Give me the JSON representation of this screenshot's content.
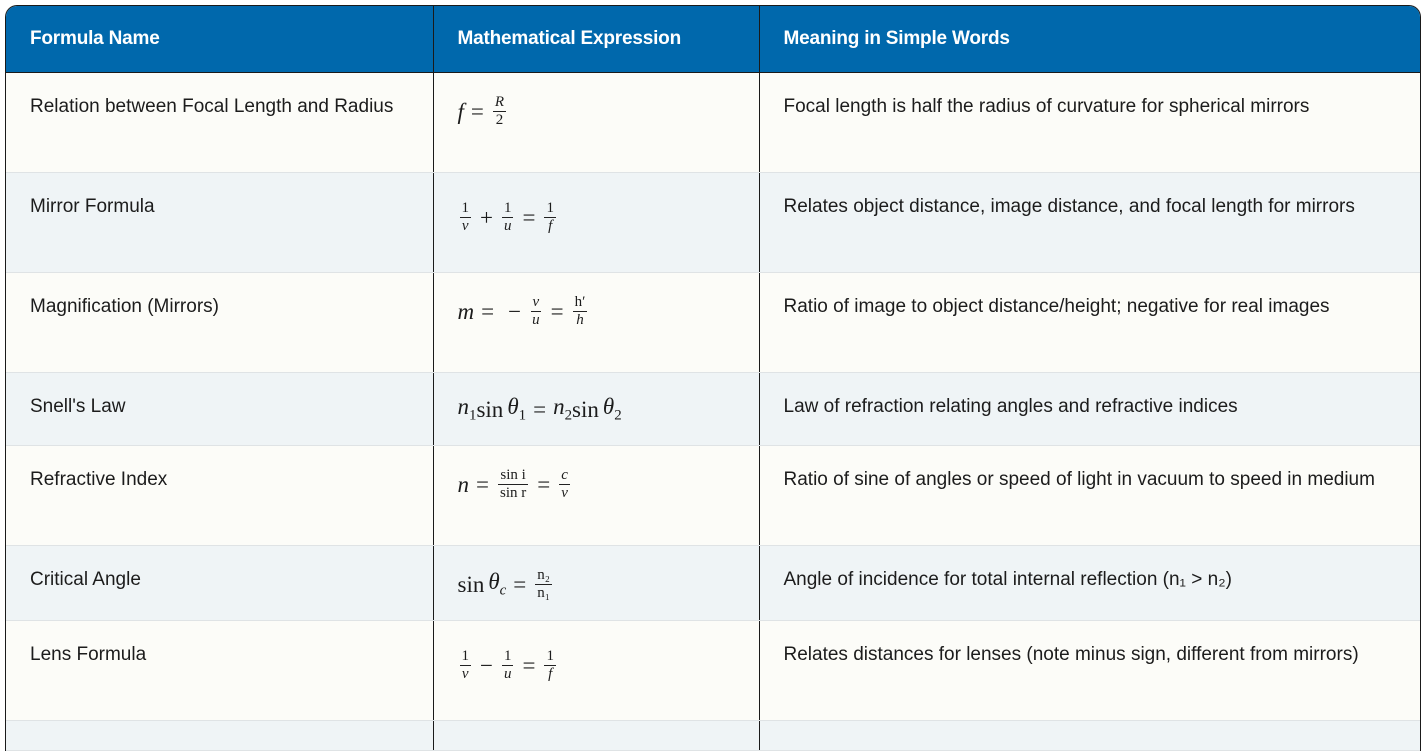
{
  "table": {
    "headers": [
      "Formula Name",
      "Mathematical Expression",
      "Meaning in Simple Words"
    ],
    "colors": {
      "header_bg": "#0068ac",
      "row_odd": "#fcfcf8",
      "row_even": "#eff4f6"
    },
    "rows": [
      {
        "name": "Relation between Focal Length and Radius",
        "formula": [
          {
            "t": "mi",
            "v": "f"
          },
          {
            "t": "mo",
            "v": "="
          },
          {
            "t": "frac",
            "n": "R",
            "d": "2"
          }
        ],
        "meaning": "Focal length is half the radius of curvature for spherical mirrors"
      },
      {
        "name": "Mirror Formula",
        "formula": [
          {
            "t": "frac",
            "n": "1",
            "d": "v"
          },
          {
            "t": "mo",
            "v": "+"
          },
          {
            "t": "frac",
            "n": "1",
            "d": "u"
          },
          {
            "t": "mo",
            "v": "="
          },
          {
            "t": "frac",
            "n": "1",
            "d": "f"
          }
        ],
        "meaning": "Relates object distance, image distance, and focal length for mirrors"
      },
      {
        "name": "Magnification (Mirrors)",
        "formula": [
          {
            "t": "mi",
            "v": "m"
          },
          {
            "t": "mo",
            "v": "="
          },
          {
            "t": "mo",
            "v": "−"
          },
          {
            "t": "frac",
            "n": "v",
            "d": "u"
          },
          {
            "t": "mo",
            "v": "="
          },
          {
            "t": "frac",
            "n": "h′",
            "d": "h"
          }
        ],
        "meaning": "Ratio of image to object distance/height; negative for real images"
      },
      {
        "name": "Snell's Law",
        "formula": [
          {
            "t": "sub",
            "v": "n",
            "s": "1"
          },
          {
            "t": "fn",
            "v": " sin"
          },
          {
            "t": "sub",
            "v": "θ",
            "s": "1"
          },
          {
            "t": "mo",
            "v": "="
          },
          {
            "t": "sub",
            "v": "n",
            "s": "2"
          },
          {
            "t": "fn",
            "v": " sin"
          },
          {
            "t": "sub",
            "v": "θ",
            "s": "2"
          }
        ],
        "meaning": "Law of refraction relating angles and refractive indices"
      },
      {
        "name": "Refractive Index",
        "formula": [
          {
            "t": "mi",
            "v": "n"
          },
          {
            "t": "mo",
            "v": "="
          },
          {
            "t": "frac",
            "n": "sin i",
            "d": "sin r"
          },
          {
            "t": "mo",
            "v": "="
          },
          {
            "t": "frac",
            "n": "c",
            "d": "v"
          }
        ],
        "meaning": "Ratio of sine of angles or speed of light in vacuum to speed in medium"
      },
      {
        "name": "Critical Angle",
        "formula": [
          {
            "t": "fn",
            "v": "sin"
          },
          {
            "t": "sub",
            "v": "θ",
            "s": "c"
          },
          {
            "t": "mo",
            "v": "="
          },
          {
            "t": "frac",
            "n": "n₂",
            "d": "n₁"
          }
        ],
        "meaning": "Angle of incidence for total internal reflection (n₁ > n₂)"
      },
      {
        "name": "Lens Formula",
        "formula": [
          {
            "t": "frac",
            "n": "1",
            "d": "v"
          },
          {
            "t": "mo",
            "v": "−"
          },
          {
            "t": "frac",
            "n": "1",
            "d": "u"
          },
          {
            "t": "mo",
            "v": "="
          },
          {
            "t": "frac",
            "n": "1",
            "d": "f"
          }
        ],
        "meaning": "Relates distances for lenses (note minus sign, different from mirrors)"
      }
    ]
  }
}
